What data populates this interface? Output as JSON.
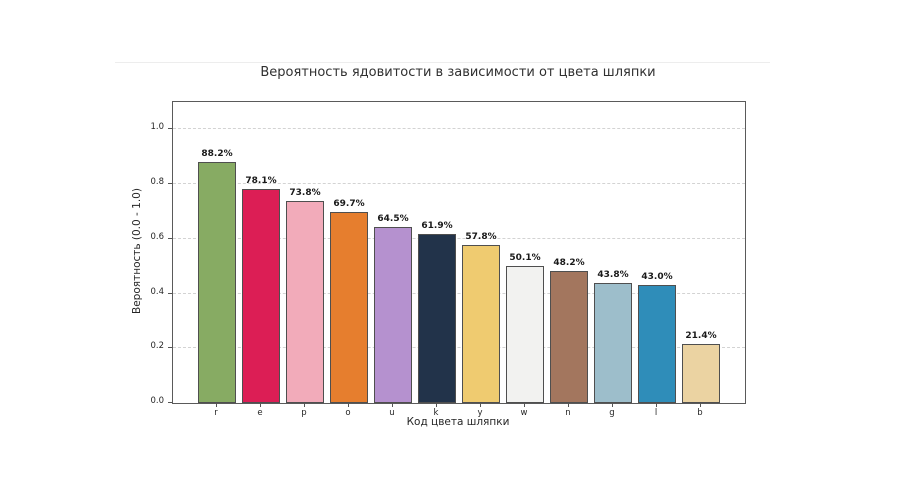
{
  "figure": {
    "background": "#ffffff",
    "edge_line_color": "#ededed"
  },
  "chart_data": {
    "type": "bar",
    "title": "Вероятность ядовитости в зависимости от цвета шляпки",
    "xlabel": "Код цвета шляпки",
    "ylabel": "Вероятность (0.0 - 1.0)",
    "categories": [
      "r",
      "e",
      "p",
      "o",
      "u",
      "k",
      "y",
      "w",
      "n",
      "g",
      "l",
      "b"
    ],
    "values": [
      0.882,
      0.781,
      0.738,
      0.697,
      0.645,
      0.619,
      0.578,
      0.501,
      0.482,
      0.438,
      0.43,
      0.214
    ],
    "value_labels": [
      "88.2%",
      "78.1%",
      "73.8%",
      "69.7%",
      "64.5%",
      "61.9%",
      "57.8%",
      "50.1%",
      "48.2%",
      "43.8%",
      "43.0%",
      "21.4%"
    ],
    "bar_colors": [
      "#87ab63",
      "#dc1e55",
      "#f2abba",
      "#e67e2e",
      "#b591cf",
      "#22334a",
      "#efcb70",
      "#f2f2f0",
      "#a3765e",
      "#9dbecb",
      "#2f8db9",
      "#ebd3a2"
    ],
    "bar_edge_color": "#4f4f4f",
    "yticks": [
      0.0,
      0.2,
      0.4,
      0.6,
      0.8,
      1.0
    ],
    "ytick_labels": [
      "0.0",
      "0.2",
      "0.4",
      "0.6",
      "0.8",
      "1.0"
    ],
    "ylim": [
      0,
      1.1
    ],
    "grid": {
      "axis": "y",
      "style": "dashed",
      "color": "#d3d3d3"
    },
    "legend_position": "none"
  }
}
